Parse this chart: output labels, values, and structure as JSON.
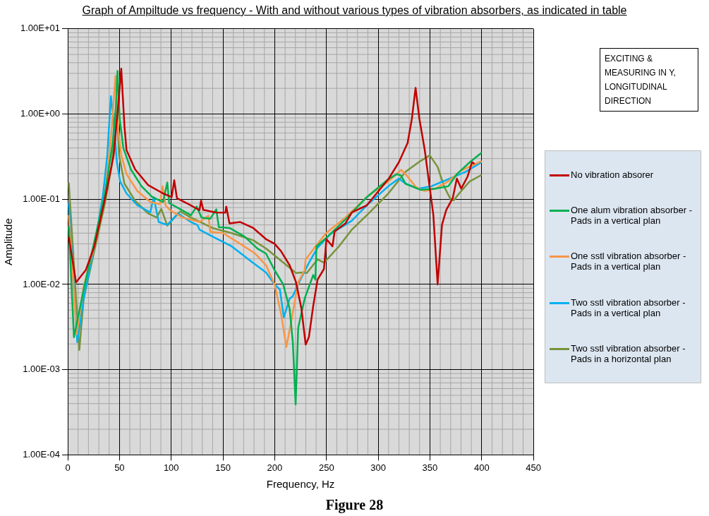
{
  "chart_data": {
    "type": "line",
    "title": "Graph of Ampiltude vs frequency - With and without various types of vibration absorbers, as indicated in table",
    "xlabel": "Frequency, Hz",
    "ylabel": "Amplitude",
    "log": "y",
    "grid": true,
    "legend": "right",
    "marker": "none",
    "line_style": "solid",
    "xlim": [
      0,
      450
    ],
    "xticks": [
      0,
      50,
      100,
      150,
      200,
      250,
      300,
      350,
      400,
      450
    ],
    "ylim": [
      0.0001,
      10
    ],
    "yticks": [
      {
        "value": 0.0001,
        "label": "1.00E-04"
      },
      {
        "value": 0.001,
        "label": "1.00E-03"
      },
      {
        "value": 0.01,
        "label": "1.00E-02"
      },
      {
        "value": 0.1,
        "label": "1.00E-01"
      },
      {
        "value": 1,
        "label": "1.00E+00"
      },
      {
        "value": 10,
        "label": "1.00E+01"
      }
    ],
    "annotations": [
      "EXCITING & MEASURING IN Y, LONGITUDINAL DIRECTION",
      "Figure 28"
    ],
    "series": [
      {
        "name": "No vibration absorer",
        "color": "#c00000",
        "x": [
          1,
          8,
          17.5,
          25.7,
          36,
          44.4,
          48.6,
          51.7,
          54.8,
          56.8,
          65.1,
          77.6,
          92.1,
          100.4,
          102.9,
          105.5,
          114.9,
          127.3,
          128.8,
          131,
          142.9,
          152.2,
          153.2,
          156.3,
          166.7,
          179.2,
          191.6,
          199.9,
          206,
          214.4,
          220.6,
          225.8,
          229.9,
          233,
          237.2,
          241.4,
          247.6,
          250,
          255.8,
          257.9,
          268.3,
          274.5,
          289,
          309.8,
          320,
          328.4,
          332.5,
          336.1,
          339.8,
          345,
          350.2,
          353.3,
          357.4,
          361.6,
          365.7,
          372,
          376,
          380.2,
          386.4,
          390.6,
          393
        ],
        "values": [
          0.036,
          0.0106,
          0.0148,
          0.028,
          0.102,
          0.33,
          1.2,
          3.4,
          0.72,
          0.376,
          0.224,
          0.147,
          0.117,
          0.106,
          0.167,
          0.103,
          0.09,
          0.0745,
          0.096,
          0.075,
          0.07,
          0.0697,
          0.082,
          0.052,
          0.054,
          0.046,
          0.034,
          0.03,
          0.0247,
          0.0168,
          0.0106,
          0.0052,
          0.00197,
          0.0024,
          0.0056,
          0.0114,
          0.0152,
          0.034,
          0.028,
          0.042,
          0.052,
          0.07,
          0.085,
          0.172,
          0.272,
          0.457,
          0.875,
          2.03,
          0.875,
          0.376,
          0.125,
          0.065,
          0.01,
          0.05,
          0.0745,
          0.103,
          0.175,
          0.133,
          0.185,
          0.272,
          0.26
        ]
      },
      {
        "name": "One alum vibration absorber - Pads in a vertical plan",
        "color": "#00b050",
        "x": [
          1,
          6,
          15.4,
          25.7,
          36,
          43.4,
          46.5,
          48.1,
          50.2,
          53.7,
          61,
          71.3,
          81.7,
          92.1,
          96.2,
          98,
          106.6,
          119,
          124.6,
          129.3,
          137.7,
          143.5,
          146,
          156.3,
          170.8,
          183.3,
          191.6,
          199.9,
          208.2,
          214.4,
          217.5,
          220.2,
          222.7,
          228.9,
          237.2,
          239.3,
          240.3,
          249.6,
          268.3,
          289,
          309.8,
          318,
          322,
          326.5,
          340.8,
          355.3,
          367.7,
          376,
          388.5,
          400
        ],
        "values": [
          0.048,
          0.0024,
          0.0087,
          0.032,
          0.117,
          0.457,
          1.2,
          3.2,
          0.875,
          0.4,
          0.224,
          0.142,
          0.106,
          0.093,
          0.157,
          0.09,
          0.079,
          0.065,
          0.082,
          0.061,
          0.059,
          0.076,
          0.047,
          0.046,
          0.0365,
          0.0264,
          0.023,
          0.0147,
          0.01,
          0.0052,
          0.0021,
          0.00039,
          0.0031,
          0.0068,
          0.0129,
          0.0114,
          0.028,
          0.035,
          0.058,
          0.106,
          0.172,
          0.197,
          0.19,
          0.152,
          0.129,
          0.133,
          0.142,
          0.197,
          0.272,
          0.352
        ]
      },
      {
        "name": "One sstl vibration absorber - Pads in a vertical plan",
        "color": "#f79646",
        "x": [
          1,
          8.7,
          15.4,
          25.7,
          36,
          42.3,
          46.1,
          49,
          51.7,
          56.8,
          67.2,
          79.7,
          89,
          91.7,
          94.5,
          98.7,
          110.8,
          127.3,
          136,
          137.7,
          150,
          166.7,
          181.2,
          191.6,
          199.9,
          206,
          211.3,
          216.5,
          222.7,
          228.9,
          229.9,
          241.4,
          249.6,
          268.3,
          289,
          309.8,
          322.2,
          328.4,
          336.6,
          345,
          355.3,
          367.7,
          380.2,
          400
        ],
        "values": [
          0.065,
          0.0026,
          0.0095,
          0.028,
          0.108,
          0.63,
          2.8,
          0.63,
          0.33,
          0.197,
          0.125,
          0.093,
          0.0875,
          0.142,
          0.085,
          0.0745,
          0.061,
          0.054,
          0.064,
          0.0415,
          0.04,
          0.03,
          0.023,
          0.0168,
          0.01,
          0.0046,
          0.00185,
          0.004,
          0.0106,
          0.0147,
          0.0197,
          0.03,
          0.04,
          0.061,
          0.106,
          0.162,
          0.221,
          0.185,
          0.138,
          0.125,
          0.133,
          0.162,
          0.217,
          0.281
        ]
      },
      {
        "name": "Two sstl vibration absorber - Pads in a vertical plan",
        "color": "#00b0f0",
        "x": [
          1,
          9.2,
          15.4,
          25.7,
          34,
          38.2,
          41.7,
          44.4,
          47.5,
          50.6,
          56.8,
          67.2,
          79.7,
          83.1,
          87.9,
          96.2,
          106.6,
          119,
          125.2,
          127.3,
          142.9,
          158.4,
          179.2,
          191.6,
          199.9,
          205,
          208.8,
          214.4,
          217.5,
          224.8,
          233,
          241.4,
          253.8,
          274.5,
          289,
          309.8,
          320,
          326.5,
          338.7,
          351.3,
          367.7,
          384.4,
          400
        ],
        "values": [
          0.09,
          0.0021,
          0.0068,
          0.028,
          0.11,
          0.33,
          1.62,
          0.82,
          0.272,
          0.162,
          0.117,
          0.085,
          0.07,
          0.106,
          0.054,
          0.05,
          0.068,
          0.054,
          0.05,
          0.044,
          0.035,
          0.028,
          0.0179,
          0.0138,
          0.01,
          0.0087,
          0.0041,
          0.0068,
          0.0073,
          0.0114,
          0.0179,
          0.027,
          0.039,
          0.056,
          0.085,
          0.142,
          0.175,
          0.152,
          0.133,
          0.142,
          0.172,
          0.21,
          0.272
        ]
      },
      {
        "name": "Two sstl vibration absorber - Pads in a horizontal  plan",
        "color": "#77933c",
        "x": [
          1,
          11.2,
          15.4,
          25.7,
          36,
          42.3,
          45.4,
          47.5,
          49.6,
          54.8,
          65.1,
          77.6,
          86,
          90.4,
          96.2,
          108.6,
          119,
          139.8,
          158.4,
          179.2,
          191.6,
          206,
          214.4,
          220.6,
          226.8,
          231,
          241.4,
          247.6,
          251.7,
          262.1,
          274.5,
          289,
          309.8,
          326.5,
          340.8,
          349.8,
          357.4,
          363.6,
          369.9,
          373,
          378.2,
          388.5,
          400
        ],
        "values": [
          0.157,
          0.0017,
          0.0068,
          0.0247,
          0.09,
          0.24,
          0.63,
          1.13,
          0.33,
          0.152,
          0.096,
          0.068,
          0.061,
          0.077,
          0.049,
          0.072,
          0.061,
          0.046,
          0.04,
          0.033,
          0.0264,
          0.019,
          0.0157,
          0.0136,
          0.0138,
          0.0136,
          0.0197,
          0.018,
          0.0204,
          0.028,
          0.044,
          0.065,
          0.117,
          0.21,
          0.281,
          0.327,
          0.24,
          0.142,
          0.1,
          0.097,
          0.117,
          0.162,
          0.193
        ]
      }
    ]
  }
}
